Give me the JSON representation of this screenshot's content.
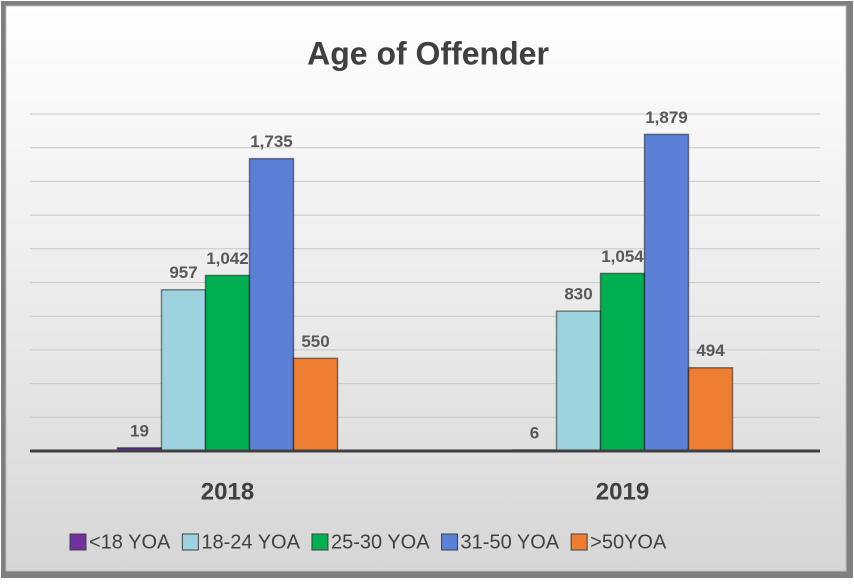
{
  "chart_data": {
    "type": "bar",
    "title": "Age of Offender",
    "categories": [
      "2018",
      "2019"
    ],
    "series": [
      {
        "name": "<18 YOA",
        "color": "#7030a0",
        "values": [
          19,
          6
        ],
        "value_labels": [
          "19",
          "6"
        ]
      },
      {
        "name": "18-24 YOA",
        "color": "#9dd3df",
        "values": [
          957,
          830
        ],
        "value_labels": [
          "957",
          "830"
        ]
      },
      {
        "name": "25-30 YOA",
        "color": "#00b050",
        "values": [
          1042,
          1054
        ],
        "value_labels": [
          "1,042",
          "1,054"
        ]
      },
      {
        "name": "31-50 YOA",
        "color": "#5b80d6",
        "values": [
          1735,
          1879
        ],
        "value_labels": [
          "1,735",
          "1,879"
        ]
      },
      {
        "name": ">50YOA",
        "color": "#ed7d31",
        "values": [
          550,
          494
        ],
        "value_labels": [
          "550",
          "494"
        ]
      }
    ],
    "ylim": [
      0,
      2000
    ],
    "yticks": [
      0,
      200,
      400,
      600,
      800,
      1000,
      1200,
      1400,
      1600,
      1800,
      2000
    ],
    "grid": true
  }
}
